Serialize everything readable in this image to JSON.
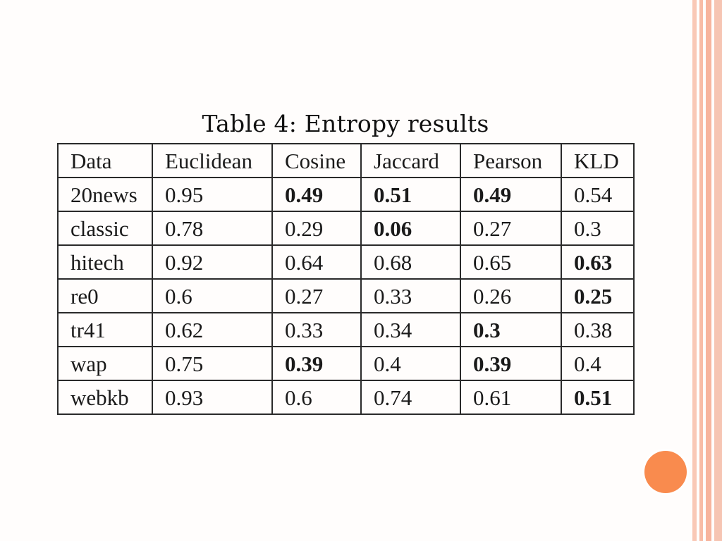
{
  "caption": "Table 4: Entropy results",
  "table": {
    "headers": [
      "Data",
      "Euclidean",
      "Cosine",
      "Jaccard",
      "Pearson",
      "KLD"
    ],
    "rows": [
      [
        "20news",
        "0.95",
        "0.49",
        "0.51",
        "0.49",
        "0.54"
      ],
      [
        "classic",
        "0.78",
        "0.29",
        "0.06",
        "0.27",
        "0.3"
      ],
      [
        "hitech",
        "0.92",
        "0.64",
        "0.68",
        "0.65",
        "0.63"
      ],
      [
        "re0",
        "0.6",
        "0.27",
        "0.33",
        "0.26",
        "0.25"
      ],
      [
        "tr41",
        "0.62",
        "0.33",
        "0.34",
        "0.3",
        "0.38"
      ],
      [
        "wap",
        "0.75",
        "0.39",
        "0.4",
        "0.39",
        "0.4"
      ],
      [
        "webkb",
        "0.93",
        "0.6",
        "0.74",
        "0.61",
        "0.51"
      ]
    ],
    "bold_cells": [
      [
        false,
        false,
        true,
        true,
        true,
        false
      ],
      [
        false,
        false,
        false,
        true,
        false,
        false
      ],
      [
        false,
        false,
        false,
        false,
        false,
        true
      ],
      [
        false,
        false,
        false,
        false,
        false,
        true
      ],
      [
        false,
        false,
        false,
        false,
        true,
        false
      ],
      [
        false,
        false,
        true,
        false,
        true,
        false
      ],
      [
        false,
        false,
        false,
        false,
        false,
        true
      ]
    ]
  },
  "theme": {
    "accent": "#f98b4e",
    "stripe": "#f7b49d"
  }
}
